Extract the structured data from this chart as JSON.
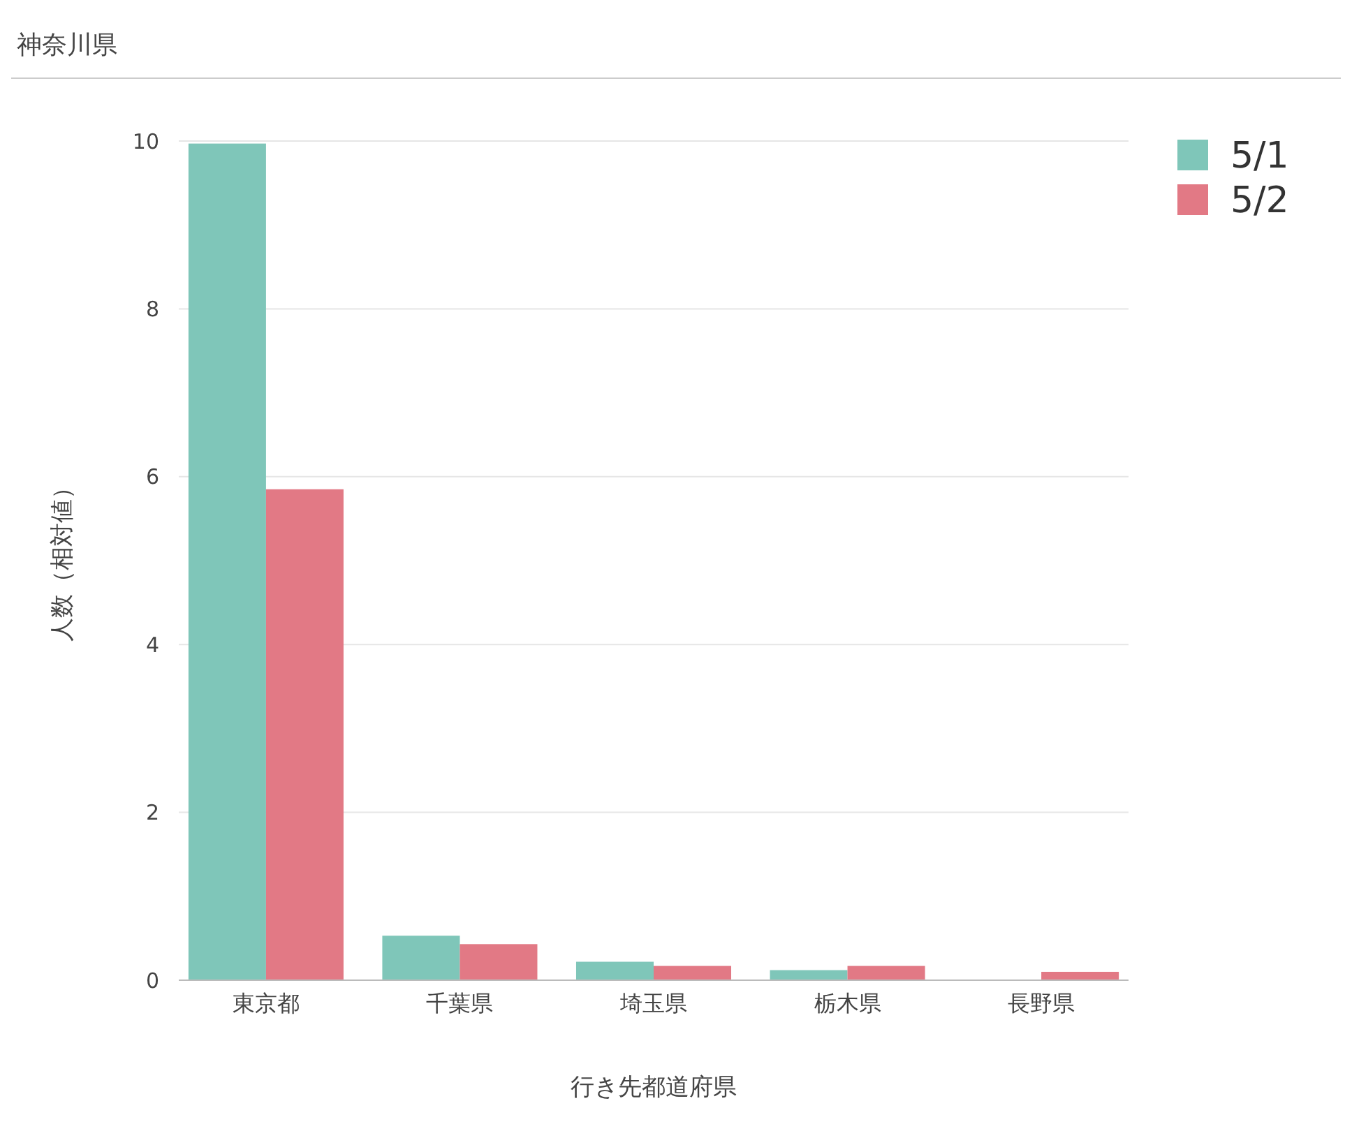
{
  "chart_data": {
    "type": "bar",
    "title": "神奈川県",
    "xlabel": "行き先都道府県",
    "ylabel": "人数（相対値）",
    "categories": [
      "東京都",
      "千葉県",
      "埼玉県",
      "栃木県",
      "長野県"
    ],
    "series": [
      {
        "name": "5/1",
        "color": "#7fc6b9",
        "values": [
          9.97,
          0.53,
          0.22,
          0.12,
          0
        ]
      },
      {
        "name": "5/2",
        "color": "#e27985",
        "values": [
          5.85,
          0.43,
          0.17,
          0.17,
          0.1
        ]
      }
    ],
    "ylim": [
      0,
      10.05
    ],
    "yticks": [
      0,
      2,
      4,
      6,
      8,
      10
    ],
    "grid": "y",
    "legend": "top right"
  }
}
